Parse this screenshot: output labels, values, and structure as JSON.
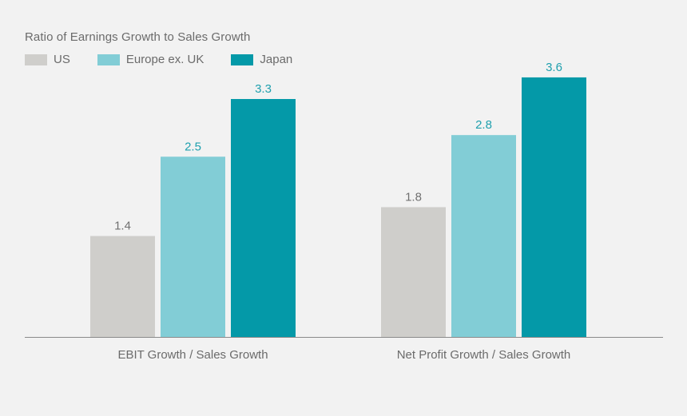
{
  "chart_data": {
    "type": "bar",
    "title": "Ratio of Earnings Growth to Sales Growth",
    "categories": [
      "EBIT Growth / Sales Growth",
      "Net Profit Growth / Sales Growth"
    ],
    "series": [
      {
        "name": "US",
        "color": "#cfcecb",
        "label_color": "#707070",
        "values": [
          1.4,
          1.8
        ]
      },
      {
        "name": "Europe ex. UK",
        "color": "#82cdd6",
        "label_color": "#1fa0ae",
        "values": [
          2.5,
          2.8
        ]
      },
      {
        "name": "Japan",
        "color": "#0499a8",
        "label_color": "#1fa0ae",
        "values": [
          3.3,
          3.6
        ]
      }
    ],
    "ylim": [
      0,
      4.4
    ],
    "grid": false,
    "legend_placement": "top-left",
    "xlabel": "",
    "ylabel": ""
  }
}
